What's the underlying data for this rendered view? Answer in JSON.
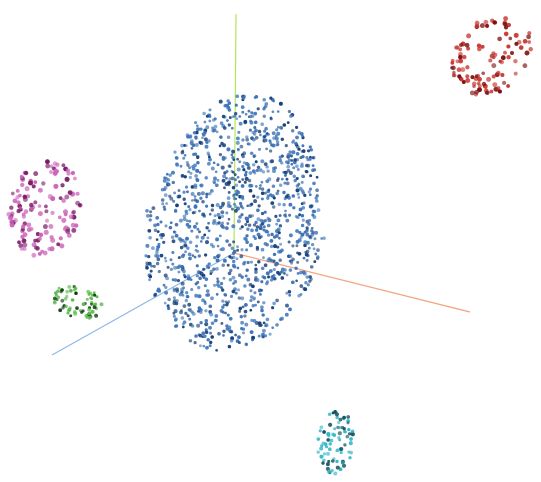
{
  "chart_data": {
    "type": "scatter",
    "projection": "3d",
    "grid": false,
    "legend": "none",
    "axes": [
      {
        "name": "x",
        "color": "#f2a27a"
      },
      {
        "name": "y",
        "color": "#b4e85a"
      },
      {
        "name": "z",
        "color": "#8fb9ea"
      }
    ],
    "clusters": [
      {
        "id": "center",
        "color": "#3d74b8",
        "dark_color": "#16407a",
        "approx_points": 1200
      },
      {
        "id": "top-right",
        "color": "#c8322b",
        "dark_color": "#7a0f10",
        "approx_points": 110
      },
      {
        "id": "left-magenta",
        "color": "#cc66bb",
        "dark_color": "#7a1e66",
        "approx_points": 140
      },
      {
        "id": "left-green",
        "color": "#58b84a",
        "dark_color": "#0c3d0c",
        "approx_points": 70
      },
      {
        "id": "bottom-cyan",
        "color": "#33b6c6",
        "dark_color": "#0d4d58",
        "approx_points": 80
      }
    ]
  }
}
